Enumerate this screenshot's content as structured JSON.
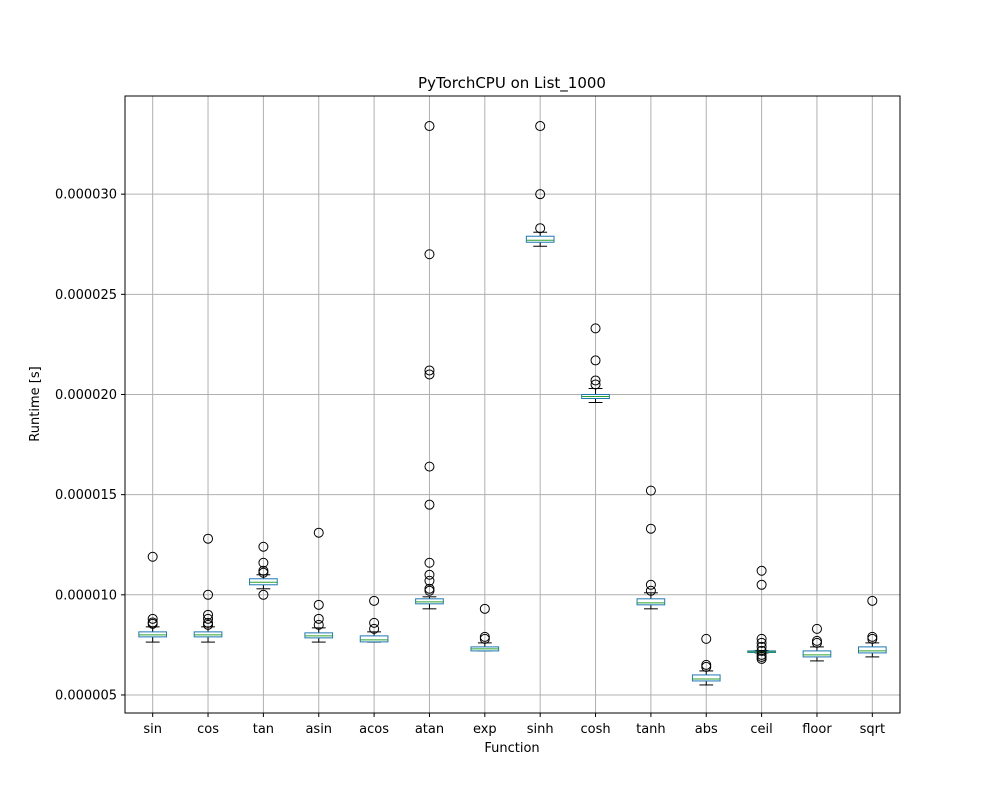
{
  "chart_data": {
    "type": "box",
    "title": "PyTorchCPU on List_1000",
    "xlabel": "Function",
    "ylabel": "Runtime [s]",
    "ylim": [
      4.1e-06,
      3.49e-05
    ],
    "yticks": [
      5e-06,
      1e-05,
      1.5e-05,
      2e-05,
      2.5e-05,
      3e-05
    ],
    "ytick_labels": [
      "0.000005",
      "0.000010",
      "0.000015",
      "0.000020",
      "0.000025",
      "0.000030"
    ],
    "grid": true,
    "colors": {
      "box": "#1f77b4",
      "median": "#2ca02c",
      "whisker": "#000000",
      "grid": "#b0b0b0"
    },
    "series": [
      {
        "name": "sin",
        "whislo": 7.64e-06,
        "q1": 7.9e-06,
        "med": 8e-06,
        "q3": 8.15e-06,
        "whishi": 8.4e-06,
        "fliers": [
          1.19e-05,
          8.8e-06,
          8.62e-06,
          8.55e-06
        ]
      },
      {
        "name": "cos",
        "whislo": 7.64e-06,
        "q1": 7.9e-06,
        "med": 8e-06,
        "q3": 8.15e-06,
        "whishi": 8.4e-06,
        "fliers": [
          1.28e-05,
          1e-05,
          9e-06,
          8.8e-06,
          8.6e-06,
          8.5e-06
        ]
      },
      {
        "name": "tan",
        "whislo": 1.03e-05,
        "q1": 1.05e-05,
        "med": 1.063e-05,
        "q3": 1.08e-05,
        "whishi": 1.1e-05,
        "fliers": [
          1.24e-05,
          1.16e-05,
          1.12e-05,
          1.11e-05,
          1e-05
        ]
      },
      {
        "name": "asin",
        "whislo": 7.64e-06,
        "q1": 7.85e-06,
        "med": 7.95e-06,
        "q3": 8.1e-06,
        "whishi": 8.35e-06,
        "fliers": [
          1.31e-05,
          9.5e-06,
          8.8e-06,
          8.5e-06
        ]
      },
      {
        "name": "acos",
        "whislo": 7.64e-06,
        "q1": 7.65e-06,
        "med": 7.75e-06,
        "q3": 7.95e-06,
        "whishi": 8.15e-06,
        "fliers": [
          9.7e-06,
          8.6e-06,
          8.3e-06
        ]
      },
      {
        "name": "atan",
        "whislo": 9.3e-06,
        "q1": 9.55e-06,
        "med": 9.65e-06,
        "q3": 9.8e-06,
        "whishi": 9.9e-06,
        "fliers": [
          3.34e-05,
          2.7e-05,
          2.12e-05,
          2.1e-05,
          1.64e-05,
          1.45e-05,
          1.16e-05,
          1.1e-05,
          1.07e-05,
          1.03e-05,
          1.02e-05
        ]
      },
      {
        "name": "exp",
        "whislo": 7.2e-06,
        "q1": 7.2e-06,
        "med": 7.3e-06,
        "q3": 7.4e-06,
        "whishi": 7.6e-06,
        "fliers": [
          9.3e-06,
          7.9e-06,
          7.8e-06
        ]
      },
      {
        "name": "sinh",
        "whislo": 2.74e-05,
        "q1": 2.76e-05,
        "med": 2.77e-05,
        "q3": 2.79e-05,
        "whishi": 2.81e-05,
        "fliers": [
          3.34e-05,
          3e-05,
          2.83e-05
        ]
      },
      {
        "name": "cosh",
        "whislo": 1.96e-05,
        "q1": 1.98e-05,
        "med": 1.99e-05,
        "q3": 2e-05,
        "whishi": 2.03e-05,
        "fliers": [
          2.33e-05,
          2.17e-05,
          2.07e-05,
          2.05e-05
        ]
      },
      {
        "name": "tanh",
        "whislo": 9.3e-06,
        "q1": 9.5e-06,
        "med": 9.6e-06,
        "q3": 9.8e-06,
        "whishi": 1.01e-05,
        "fliers": [
          1.52e-05,
          1.33e-05,
          1.05e-05,
          1.02e-05
        ]
      },
      {
        "name": "abs",
        "whislo": 5.5e-06,
        "q1": 5.7e-06,
        "med": 5.8e-06,
        "q3": 6e-06,
        "whishi": 6.2e-06,
        "fliers": [
          7.8e-06,
          6.5e-06,
          6.4e-06
        ]
      },
      {
        "name": "ceil",
        "whislo": 7.1e-06,
        "q1": 7.12e-06,
        "med": 7.15e-06,
        "q3": 7.2e-06,
        "whishi": 7.22e-06,
        "fliers": [
          1.12e-05,
          1.05e-05,
          7.8e-06,
          7.6e-06,
          7.4e-06,
          7.2e-06,
          7e-06,
          6.9e-06,
          6.8e-06
        ]
      },
      {
        "name": "floor",
        "whislo": 6.7e-06,
        "q1": 6.9e-06,
        "med": 7e-06,
        "q3": 7.2e-06,
        "whishi": 7.4e-06,
        "fliers": [
          8.3e-06,
          7.7e-06,
          7.6e-06
        ]
      },
      {
        "name": "sqrt",
        "whislo": 6.9e-06,
        "q1": 7.1e-06,
        "med": 7.2e-06,
        "q3": 7.4e-06,
        "whishi": 7.6e-06,
        "fliers": [
          9.7e-06,
          7.9e-06,
          7.8e-06
        ]
      }
    ]
  }
}
